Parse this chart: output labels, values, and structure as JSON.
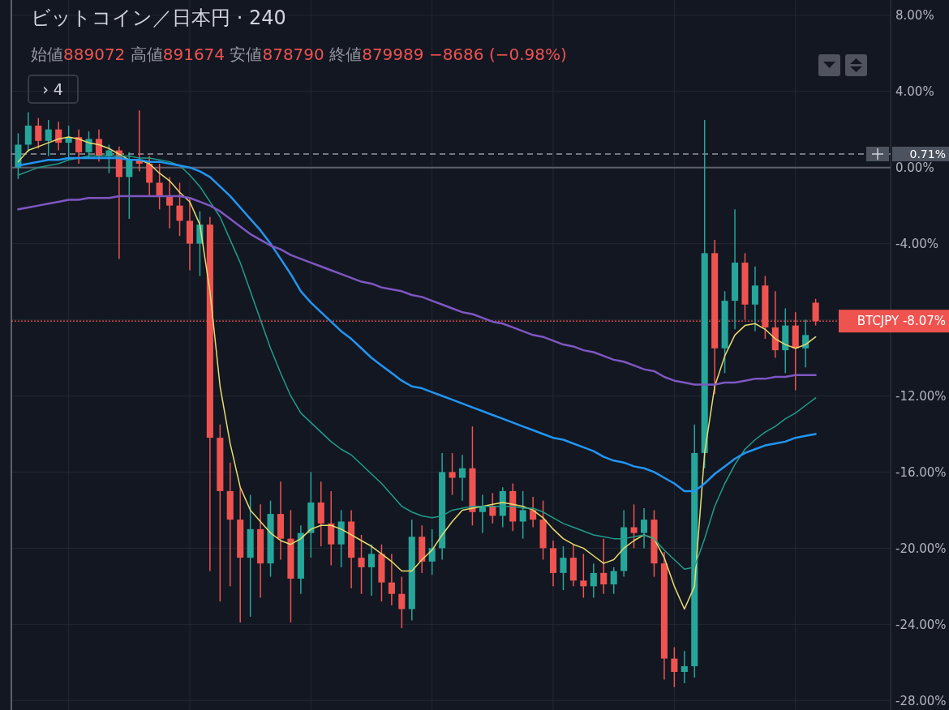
{
  "chart_data": {
    "type": "candlestick",
    "title": "ビットコイン／日本円 · 240",
    "annotations": [
      "始値889072 高値891674 安値878790 終値879989 −8686 (−0.98%)",
      "› 4"
    ],
    "categories": [
      null,
      null,
      null,
      null,
      null,
      null,
      null,
      null,
      null,
      null,
      null,
      null,
      null,
      null,
      null,
      null,
      null,
      null,
      null,
      null,
      null,
      null,
      null,
      null,
      null,
      null,
      null,
      null,
      null,
      null,
      null,
      null,
      null,
      null,
      null,
      null,
      null,
      null,
      null,
      null,
      null,
      null,
      null,
      null,
      null,
      null,
      null,
      null,
      null,
      null,
      null,
      null,
      null,
      null,
      null,
      null,
      null,
      null,
      null,
      null,
      null,
      null,
      null,
      null,
      null,
      null,
      null,
      null,
      null,
      null,
      null,
      null,
      null,
      null,
      null,
      null,
      null,
      null,
      null,
      null
    ],
    "ohlc": [
      [
        0.0,
        1.8,
        -0.6,
        1.2
      ],
      [
        1.2,
        2.9,
        0.8,
        2.2
      ],
      [
        2.2,
        2.6,
        1.0,
        1.4
      ],
      [
        1.4,
        2.5,
        0.6,
        2.0
      ],
      [
        2.0,
        2.4,
        0.9,
        1.3
      ],
      [
        1.3,
        2.2,
        0.4,
        1.6
      ],
      [
        1.6,
        2.0,
        0.2,
        0.8
      ],
      [
        0.8,
        1.9,
        0.5,
        1.5
      ],
      [
        1.5,
        2.0,
        0.3,
        0.6
      ],
      [
        0.6,
        1.2,
        -0.3,
        0.9
      ],
      [
        0.9,
        1.1,
        -4.8,
        -0.5
      ],
      [
        -0.5,
        0.8,
        -2.7,
        0.4
      ],
      [
        0.4,
        3.0,
        -0.2,
        0.2
      ],
      [
        0.2,
        0.6,
        -1.5,
        -0.8
      ],
      [
        -0.8,
        0.2,
        -2.2,
        -1.5
      ],
      [
        -1.5,
        -0.5,
        -3.2,
        -2.0
      ],
      [
        -2.0,
        -0.8,
        -3.6,
        -2.8
      ],
      [
        -2.8,
        -1.6,
        -5.4,
        -4.0
      ],
      [
        -4.0,
        -2.3,
        -5.7,
        -3.0
      ],
      [
        -3.0,
        -2.6,
        -21.2,
        -14.2
      ],
      [
        -14.2,
        -13.5,
        -22.8,
        -17.0
      ],
      [
        -17.0,
        -15.5,
        -22.0,
        -18.5
      ],
      [
        -18.5,
        -16.8,
        -23.9,
        -20.5
      ],
      [
        -20.5,
        -17.2,
        -23.6,
        -19.0
      ],
      [
        -19.0,
        -17.7,
        -22.6,
        -20.8
      ],
      [
        -20.8,
        -17.5,
        -21.5,
        -18.2
      ],
      [
        -18.2,
        -16.5,
        -20.6,
        -19.5
      ],
      [
        -19.5,
        -18.0,
        -23.9,
        -21.6
      ],
      [
        -21.6,
        -18.8,
        -22.4,
        -19.2
      ],
      [
        -19.2,
        -16.0,
        -20.5,
        -17.6
      ],
      [
        -17.6,
        -16.5,
        -19.9,
        -18.7
      ],
      [
        -18.7,
        -17.0,
        -20.9,
        -19.8
      ],
      [
        -19.8,
        -18.0,
        -21.0,
        -18.6
      ],
      [
        -18.6,
        -18.0,
        -22.1,
        -20.5
      ],
      [
        -20.5,
        -19.3,
        -22.4,
        -21.0
      ],
      [
        -21.0,
        -19.8,
        -22.5,
        -20.3
      ],
      [
        -20.3,
        -19.8,
        -22.8,
        -21.8
      ],
      [
        -21.8,
        -20.3,
        -23.0,
        -22.4
      ],
      [
        -22.4,
        -21.5,
        -24.2,
        -23.2
      ],
      [
        -23.2,
        -18.5,
        -23.8,
        -19.4
      ],
      [
        -19.4,
        -18.8,
        -21.3,
        -20.7
      ],
      [
        -20.7,
        -19.0,
        -21.4,
        -20.0
      ],
      [
        -20.0,
        -15.0,
        -20.6,
        -16.0
      ],
      [
        -16.0,
        -15.0,
        -17.2,
        -16.3
      ],
      [
        -16.3,
        -15.1,
        -17.5,
        -15.8
      ],
      [
        -15.8,
        -13.6,
        -18.8,
        -18.1
      ],
      [
        -18.1,
        -17.2,
        -19.2,
        -17.8
      ],
      [
        -17.8,
        -17.1,
        -18.7,
        -18.3
      ],
      [
        -18.3,
        -16.8,
        -18.9,
        -17.0
      ],
      [
        -17.0,
        -16.6,
        -19.1,
        -18.6
      ],
      [
        -18.6,
        -17.0,
        -19.5,
        -18.0
      ],
      [
        -18.0,
        -17.3,
        -18.9,
        -18.5
      ],
      [
        -18.5,
        -17.5,
        -20.6,
        -20.0
      ],
      [
        -20.0,
        -19.6,
        -22.0,
        -21.3
      ],
      [
        -21.3,
        -19.9,
        -22.2,
        -20.5
      ],
      [
        -20.5,
        -19.8,
        -22.0,
        -21.7
      ],
      [
        -21.7,
        -20.3,
        -22.6,
        -22.0
      ],
      [
        -22.0,
        -20.8,
        -22.6,
        -21.3
      ],
      [
        -21.3,
        -19.5,
        -22.4,
        -21.9
      ],
      [
        -21.9,
        -21.0,
        -22.4,
        -21.2
      ],
      [
        -21.2,
        -18.0,
        -21.5,
        -18.9
      ],
      [
        -18.9,
        -17.7,
        -20.0,
        -19.2
      ],
      [
        -19.2,
        -17.9,
        -20.0,
        -18.5
      ],
      [
        -18.5,
        -18.0,
        -21.5,
        -20.8
      ],
      [
        -20.8,
        -20.2,
        -26.9,
        -25.8
      ],
      [
        -25.8,
        -25.2,
        -27.3,
        -26.5
      ],
      [
        -26.5,
        -25.4,
        -27.1,
        -26.2
      ],
      [
        -26.2,
        -13.5,
        -26.8,
        -15.0
      ],
      [
        -15.0,
        2.5,
        -15.8,
        -4.5
      ],
      [
        -4.5,
        -3.8,
        -11.9,
        -9.5
      ],
      [
        -9.5,
        -6.5,
        -10.8,
        -7.0
      ],
      [
        -7.0,
        -2.2,
        -8.5,
        -5.0
      ],
      [
        -5.0,
        -4.5,
        -8.0,
        -7.2
      ],
      [
        -7.2,
        -5.2,
        -8.6,
        -6.2
      ],
      [
        -6.2,
        -5.7,
        -9.0,
        -8.4
      ],
      [
        -8.4,
        -6.5,
        -10.0,
        -9.6
      ],
      [
        -9.6,
        -7.4,
        -10.8,
        -8.3
      ],
      [
        -8.3,
        -7.6,
        -11.7,
        -9.5
      ],
      [
        -9.5,
        -8.0,
        -10.5,
        -8.8
      ],
      [
        -7.1,
        -6.9,
        -8.3,
        -8.07
      ]
    ],
    "colors": [
      "#26a69a",
      "#26a69a",
      "#ef5350",
      "#26a69a",
      "#ef5350",
      "#26a69a",
      "#ef5350",
      "#26a69a",
      "#ef5350",
      "#26a69a",
      "#ef5350",
      "#26a69a",
      "#ef5350",
      "#ef5350",
      "#ef5350",
      "#ef5350",
      "#ef5350",
      "#ef5350",
      "#26a69a",
      "#ef5350",
      "#ef5350",
      "#ef5350",
      "#ef5350",
      "#26a69a",
      "#ef5350",
      "#26a69a",
      "#ef5350",
      "#ef5350",
      "#26a69a",
      "#26a69a",
      "#ef5350",
      "#ef5350",
      "#26a69a",
      "#ef5350",
      "#ef5350",
      "#26a69a",
      "#ef5350",
      "#ef5350",
      "#ef5350",
      "#26a69a",
      "#ef5350",
      "#26a69a",
      "#26a69a",
      "#ef5350",
      "#26a69a",
      "#ef5350",
      "#26a69a",
      "#ef5350",
      "#26a69a",
      "#ef5350",
      "#26a69a",
      "#ef5350",
      "#ef5350",
      "#ef5350",
      "#26a69a",
      "#ef5350",
      "#ef5350",
      "#26a69a",
      "#ef5350",
      "#26a69a",
      "#26a69a",
      "#ef5350",
      "#26a69a",
      "#ef5350",
      "#ef5350",
      "#ef5350",
      "#26a69a",
      "#26a69a",
      "#26a69a",
      "#ef5350",
      "#26a69a",
      "#26a69a",
      "#ef5350",
      "#26a69a",
      "#ef5350",
      "#ef5350",
      "#26a69a",
      "#ef5350",
      "#26a69a",
      "#ef5350"
    ],
    "series": [
      {
        "type": "line",
        "color": "#e9dc6c",
        "values": [
          0.3,
          0.9,
          1.1,
          1.3,
          1.5,
          1.6,
          1.5,
          1.3,
          1.2,
          1.0,
          0.7,
          0.4,
          0.4,
          0.2,
          -0.3,
          -0.7,
          -1.3,
          -1.8,
          -3.0,
          -6.5,
          -11.5,
          -14.5,
          -16.8,
          -18.0,
          -18.6,
          -19.2,
          -19.6,
          -19.8,
          -19.5,
          -19.0,
          -18.8,
          -18.8,
          -19.0,
          -19.3,
          -19.6,
          -19.9,
          -20.3,
          -20.7,
          -21.2,
          -21.2,
          -20.6,
          -20.1,
          -19.3,
          -18.6,
          -18.0,
          -17.9,
          -17.8,
          -17.7,
          -17.6,
          -17.7,
          -17.8,
          -18.0,
          -18.4,
          -19.0,
          -19.5,
          -19.8,
          -20.0,
          -20.4,
          -20.8,
          -20.6,
          -20.0,
          -19.6,
          -19.3,
          -19.5,
          -20.5,
          -22.0,
          -23.2,
          -22.0,
          -15.0,
          -11.5,
          -9.9,
          -8.8,
          -8.3,
          -8.2,
          -8.5,
          -9.0,
          -9.3,
          -9.5,
          -9.3,
          -8.9
        ]
      },
      {
        "type": "line",
        "color": "#1f9e8a",
        "values": [
          -0.4,
          -0.2,
          0.0,
          0.1,
          0.2,
          0.4,
          0.5,
          0.6,
          0.6,
          0.6,
          0.6,
          0.6,
          0.5,
          0.5,
          0.4,
          0.3,
          0.1,
          -0.4,
          -1.0,
          -1.8,
          -2.6,
          -3.8,
          -5.0,
          -6.5,
          -8.0,
          -9.5,
          -10.8,
          -12.0,
          -12.9,
          -13.4,
          -13.9,
          -14.4,
          -14.8,
          -15.1,
          -15.6,
          -16.1,
          -16.6,
          -17.2,
          -17.8,
          -18.1,
          -18.3,
          -18.4,
          -18.3,
          -18.0,
          -17.9,
          -17.8,
          -17.8,
          -17.8,
          -17.8,
          -17.8,
          -17.9,
          -17.9,
          -18.1,
          -18.4,
          -18.7,
          -18.9,
          -19.1,
          -19.3,
          -19.4,
          -19.5,
          -19.5,
          -19.4,
          -19.3,
          -19.5,
          -20.1,
          -20.6,
          -21.1,
          -21.0,
          -19.5,
          -17.8,
          -16.6,
          -15.6,
          -14.8,
          -14.3,
          -13.9,
          -13.6,
          -13.2,
          -12.9,
          -12.5,
          -12.1
        ]
      },
      {
        "type": "line",
        "color": "#2196f3",
        "values": [
          0.1,
          0.2,
          0.3,
          0.4,
          0.4,
          0.5,
          0.5,
          0.5,
          0.5,
          0.5,
          0.5,
          0.4,
          0.4,
          0.3,
          0.3,
          0.2,
          0.1,
          0.0,
          -0.2,
          -0.5,
          -1.0,
          -1.5,
          -2.1,
          -2.7,
          -3.3,
          -4.0,
          -4.8,
          -5.6,
          -6.5,
          -7.1,
          -7.6,
          -8.1,
          -8.6,
          -9.0,
          -9.5,
          -10.0,
          -10.4,
          -10.8,
          -11.2,
          -11.5,
          -11.6,
          -11.8,
          -12.0,
          -12.2,
          -12.4,
          -12.6,
          -12.8,
          -13.0,
          -13.2,
          -13.4,
          -13.6,
          -13.8,
          -14.0,
          -14.2,
          -14.3,
          -14.5,
          -14.7,
          -14.9,
          -15.2,
          -15.4,
          -15.5,
          -15.7,
          -15.8,
          -16.0,
          -16.3,
          -16.6,
          -17.0,
          -17.0,
          -16.6,
          -16.1,
          -15.7,
          -15.3,
          -15.0,
          -14.8,
          -14.6,
          -14.5,
          -14.4,
          -14.2,
          -14.1,
          -14.0
        ]
      },
      {
        "type": "line",
        "color": "#7e57c2",
        "values": [
          -2.2,
          -2.1,
          -2.0,
          -1.9,
          -1.8,
          -1.7,
          -1.7,
          -1.6,
          -1.6,
          -1.6,
          -1.5,
          -1.5,
          -1.5,
          -1.5,
          -1.5,
          -1.5,
          -1.5,
          -1.6,
          -1.8,
          -2.0,
          -2.3,
          -2.7,
          -3.1,
          -3.5,
          -3.8,
          -4.1,
          -4.3,
          -4.6,
          -4.8,
          -5.0,
          -5.2,
          -5.4,
          -5.6,
          -5.8,
          -6.0,
          -6.1,
          -6.3,
          -6.4,
          -6.5,
          -6.7,
          -6.8,
          -7.0,
          -7.2,
          -7.4,
          -7.6,
          -7.7,
          -7.9,
          -8.1,
          -8.2,
          -8.4,
          -8.6,
          -8.8,
          -8.9,
          -9.1,
          -9.3,
          -9.4,
          -9.6,
          -9.7,
          -9.9,
          -10.1,
          -10.2,
          -10.4,
          -10.6,
          -10.7,
          -11.0,
          -11.2,
          -11.3,
          -11.4,
          -11.4,
          -11.4,
          -11.3,
          -11.3,
          -11.2,
          -11.1,
          -11.1,
          -11.0,
          -11.0,
          -10.9,
          -10.9,
          -10.9
        ]
      }
    ],
    "ylim": [
      -28.5,
      8.8
    ],
    "yticks": [
      {
        "value": 8,
        "label": "8.00%"
      },
      {
        "value": 4,
        "label": "4.00%"
      },
      {
        "value": 0,
        "label": "0.00%"
      },
      {
        "value": -4,
        "label": "-4.00%"
      },
      {
        "value": -8,
        "label": null
      },
      {
        "value": -12,
        "label": "-12.00%"
      },
      {
        "value": -16,
        "label": "-16.00%"
      },
      {
        "value": -20,
        "label": "-20.00%"
      },
      {
        "value": -24,
        "label": "-24.00%"
      },
      {
        "value": -28,
        "label": "-28.00%"
      }
    ],
    "ref_lines": [
      {
        "axis": "y",
        "value": 0,
        "color": "#5d606b",
        "line_style": "solid"
      },
      {
        "axis": "y",
        "value": 0.71,
        "label": "0.71%",
        "color": "#9598a1",
        "line_style": "dashed"
      },
      {
        "axis": "y",
        "value": -8.07,
        "label": "BTCJPY -8.07%",
        "color": "#ef5350",
        "line_style": "dotted"
      }
    ],
    "grid": true
  }
}
